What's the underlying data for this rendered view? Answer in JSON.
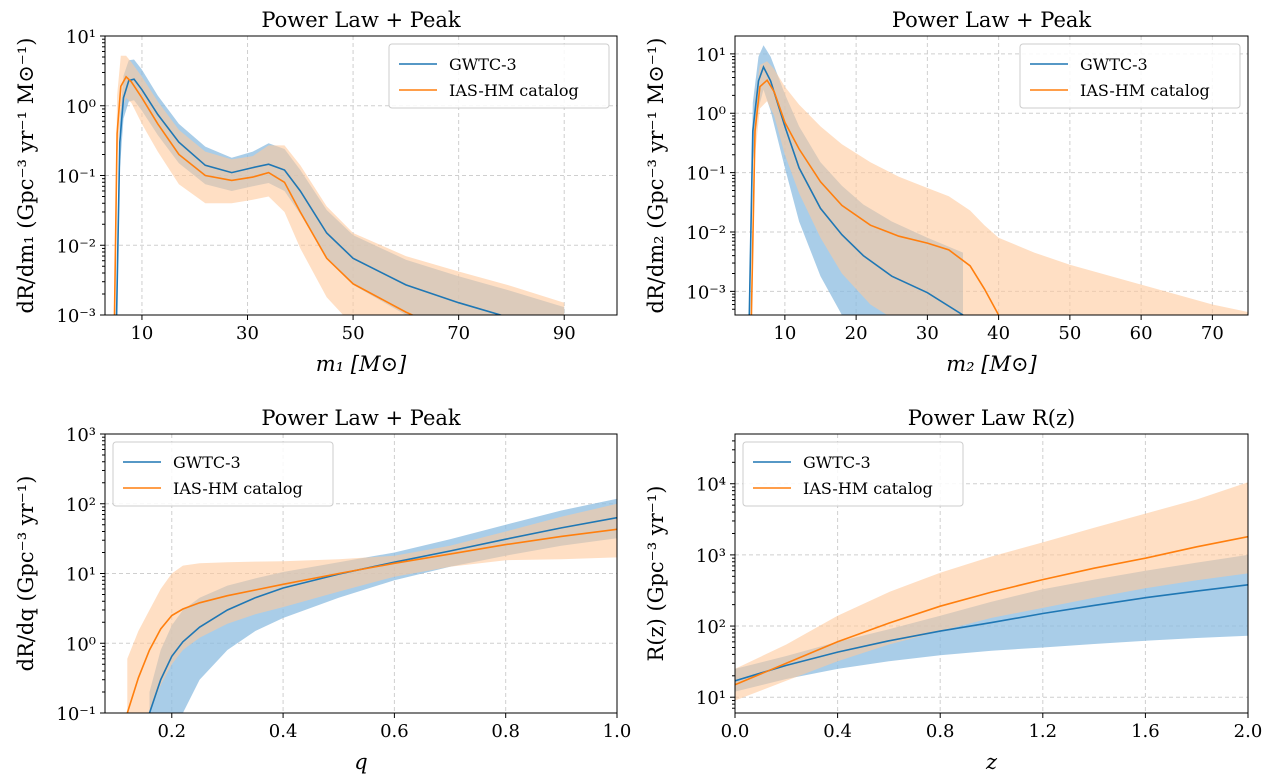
{
  "figure": {
    "colors": {
      "gwtc3": "#1f77b4",
      "gwtc3_band": "#8cbce0",
      "ias": "#ff7f0e",
      "ias_band": "#ffc99c"
    }
  },
  "chart_data": [
    {
      "type": "line",
      "title": "Power Law + Peak",
      "xlabel": "m₁ [M⊙]",
      "ylabel": "dR/dm₁ (Gpc⁻³ yr⁻¹ M⊙⁻¹)",
      "xlim": [
        3,
        100
      ],
      "ylim": [
        0.001,
        10
      ],
      "yscale": "log",
      "xticks": [
        10,
        30,
        50,
        70,
        90
      ],
      "xtick_labels": [
        "10",
        "30",
        "50",
        "70",
        "90"
      ],
      "yticks": [
        0.001,
        0.01,
        0.1,
        1,
        10
      ],
      "ytick_labels": [
        "10⁻³",
        "10⁻²",
        "10⁻¹",
        "10⁰",
        "10¹"
      ],
      "grid": true,
      "legend_position": "top-right",
      "series": [
        {
          "name": "GWTC-3",
          "x": [
            5.2,
            5.8,
            6.5,
            7.5,
            8.5,
            10,
            13,
            17,
            22,
            27,
            31,
            34,
            37,
            40,
            45,
            50,
            60,
            70,
            80,
            90
          ],
          "median": [
            0.001,
            0.3,
            1.3,
            2.3,
            2.4,
            1.7,
            0.75,
            0.3,
            0.14,
            0.11,
            0.13,
            0.145,
            0.12,
            0.06,
            0.015,
            0.0065,
            0.0027,
            0.0015,
            0.0009,
            0.0005
          ],
          "lower": [
            0.0005,
            0.12,
            0.65,
            1.15,
            1.2,
            0.85,
            0.38,
            0.15,
            0.075,
            0.06,
            0.07,
            0.078,
            0.06,
            0.028,
            0.0065,
            0.0027,
            0.001,
            0.0005,
            0.00025,
            0.0001
          ],
          "upper": [
            0.002,
            0.6,
            2.7,
            4.5,
            4.6,
            3.3,
            1.4,
            0.55,
            0.26,
            0.18,
            0.22,
            0.29,
            0.24,
            0.12,
            0.032,
            0.014,
            0.0062,
            0.0036,
            0.0022,
            0.0013
          ]
        },
        {
          "name": "IAS-HM catalog",
          "x": [
            4.8,
            5.3,
            6,
            7,
            8,
            10,
            13,
            17,
            22,
            27,
            31,
            34,
            37,
            40,
            45,
            50,
            60,
            70,
            80,
            90
          ],
          "median": [
            0.001,
            0.4,
            1.9,
            2.6,
            2.2,
            1.3,
            0.55,
            0.2,
            0.1,
            0.085,
            0.095,
            0.11,
            0.08,
            0.03,
            0.0065,
            0.0028,
            0.0011,
            0.0005,
            0.0003,
            0.00018
          ],
          "lower": [
            0.0005,
            0.17,
            0.8,
            1.3,
            1.1,
            0.55,
            0.22,
            0.075,
            0.04,
            0.04,
            0.045,
            0.05,
            0.03,
            0.009,
            0.0018,
            0.0007,
            0.0002,
            0.0001,
            5e-05,
            3e-05
          ],
          "upper": [
            0.003,
            1.4,
            5.2,
            5.2,
            4.2,
            2.6,
            1.15,
            0.45,
            0.22,
            0.17,
            0.19,
            0.27,
            0.27,
            0.14,
            0.036,
            0.015,
            0.007,
            0.0042,
            0.0026,
            0.0015
          ]
        }
      ]
    },
    {
      "type": "line",
      "title": "Power Law + Peak",
      "xlabel": "m₂ [M⊙]",
      "ylabel": "dR/dm₂ (Gpc⁻³ yr⁻¹ M⊙⁻¹)",
      "xlim": [
        3,
        75
      ],
      "ylim": [
        0.0004,
        20
      ],
      "yscale": "log",
      "xticks": [
        10,
        20,
        30,
        40,
        50,
        60,
        70
      ],
      "xtick_labels": [
        "10",
        "20",
        "30",
        "40",
        "50",
        "60",
        "70"
      ],
      "yticks": [
        0.001,
        0.01,
        0.1,
        1,
        10
      ],
      "ytick_labels": [
        "10⁻³",
        "10⁻²",
        "10⁻¹",
        "10⁰",
        "10¹"
      ],
      "grid": true,
      "legend_position": "top-right",
      "series": [
        {
          "name": "GWTC-3",
          "x": [
            5.0,
            5.5,
            6.3,
            7,
            8,
            10,
            12,
            15,
            18,
            21,
            25,
            30,
            35
          ],
          "median": [
            0.0004,
            0.5,
            3.5,
            6,
            3.5,
            0.6,
            0.12,
            0.025,
            0.009,
            0.004,
            0.0018,
            0.00095,
            0.0004
          ],
          "lower": [
            0.0002,
            0.15,
            1.2,
            2.5,
            1.1,
            0.12,
            0.015,
            0.0018,
            0.0004,
            0.00015,
            5e-05,
            2e-05,
            1e-05
          ],
          "upper": [
            0.001,
            1.5,
            9,
            14,
            9,
            2.1,
            0.6,
            0.15,
            0.06,
            0.029,
            0.015,
            0.008,
            0.0045
          ]
        },
        {
          "name": "IAS-HM catalog",
          "x": [
            5.3,
            5.8,
            6.5,
            7.5,
            8.5,
            10,
            12,
            15,
            18,
            22,
            26,
            30,
            33,
            36,
            38,
            40,
            45,
            50,
            60,
            70,
            75
          ],
          "median": [
            0.0004,
            0.5,
            2.8,
            3.6,
            2.3,
            0.7,
            0.25,
            0.07,
            0.028,
            0.013,
            0.0085,
            0.0065,
            0.005,
            0.0027,
            0.0011,
            0.0004,
            0.00012,
            5e-05,
            2e-05,
            1e-05,
            1e-05
          ],
          "lower": [
            0.0002,
            0.2,
            1.2,
            1.6,
            0.9,
            0.2,
            0.045,
            0.008,
            0.002,
            0.0006,
            0.0003,
            0.0002,
            0.00015,
            8e-05,
            4e-05,
            2e-05,
            1e-05,
            1e-05,
            1e-05,
            1e-05,
            1e-05
          ],
          "upper": [
            0.001,
            1.8,
            6.5,
            7.5,
            5.5,
            2.8,
            1.4,
            0.6,
            0.3,
            0.15,
            0.085,
            0.055,
            0.04,
            0.023,
            0.013,
            0.008,
            0.0045,
            0.0028,
            0.0013,
            0.0006,
            0.00045
          ]
        }
      ]
    },
    {
      "type": "line",
      "title": "Power Law + Peak",
      "xlabel": "q",
      "ylabel": "dR/dq (Gpc⁻³ yr⁻¹)",
      "xlim": [
        0.08,
        1.0
      ],
      "ylim": [
        0.1,
        1000
      ],
      "yscale": "log",
      "xticks": [
        0.2,
        0.4,
        0.6,
        0.8,
        1.0
      ],
      "xtick_labels": [
        "0.2",
        "0.4",
        "0.6",
        "0.8",
        "1.0"
      ],
      "yticks": [
        0.1,
        1,
        10,
        100,
        1000
      ],
      "ytick_labels": [
        "10⁻¹",
        "10⁰",
        "10¹",
        "10²",
        "10³"
      ],
      "grid": true,
      "legend_position": "top-left",
      "series": [
        {
          "name": "GWTC-3",
          "x": [
            0.16,
            0.18,
            0.2,
            0.22,
            0.25,
            0.3,
            0.35,
            0.4,
            0.5,
            0.6,
            0.7,
            0.8,
            0.9,
            1.0
          ],
          "median": [
            0.1,
            0.3,
            0.65,
            1.05,
            1.7,
            3.0,
            4.5,
            6.2,
            9.8,
            14.5,
            21,
            31,
            45,
            63
          ],
          "lower": [
            0.05,
            0.05,
            0.05,
            0.1,
            0.3,
            0.8,
            1.5,
            2.3,
            4.5,
            8,
            12.5,
            18,
            25,
            32
          ],
          "upper": [
            0.2,
            0.8,
            1.8,
            3.0,
            4.5,
            6.7,
            8.5,
            10.5,
            14.5,
            20,
            31,
            50,
            80,
            118
          ]
        },
        {
          "name": "IAS-HM catalog",
          "x": [
            0.12,
            0.14,
            0.16,
            0.18,
            0.2,
            0.22,
            0.25,
            0.3,
            0.35,
            0.4,
            0.5,
            0.6,
            0.7,
            0.8,
            0.9,
            1.0
          ],
          "median": [
            0.1,
            0.32,
            0.8,
            1.6,
            2.5,
            3.1,
            3.8,
            4.8,
            5.8,
            7.0,
            10,
            14,
            19,
            26,
            34,
            43
          ],
          "lower": [
            0.05,
            0.05,
            0.1,
            0.25,
            0.5,
            0.8,
            1.2,
            1.9,
            2.6,
            3.3,
            5.5,
            9,
            12.5,
            15.5,
            16,
            17
          ],
          "upper": [
            0.6,
            1.5,
            3,
            6,
            10,
            13,
            14,
            14.5,
            14.8,
            15,
            16,
            18,
            25,
            40,
            65,
            100
          ]
        }
      ]
    },
    {
      "type": "line",
      "title": "Power Law R(z)",
      "xlabel": "z",
      "ylabel": "R(z) (Gpc⁻³ yr⁻¹)",
      "xlim": [
        0,
        2.0
      ],
      "ylim": [
        6,
        50000
      ],
      "yscale": "log",
      "xticks": [
        0,
        0.4,
        0.8,
        1.2,
        1.6,
        2.0
      ],
      "xtick_labels": [
        "0.0",
        "0.4",
        "0.8",
        "1.2",
        "1.6",
        "2.0"
      ],
      "yticks": [
        10,
        100,
        1000,
        10000
      ],
      "ytick_labels": [
        "10¹",
        "10²",
        "10³",
        "10⁴"
      ],
      "grid": true,
      "legend_position": "top-left",
      "series": [
        {
          "name": "GWTC-3",
          "x": [
            0,
            0.2,
            0.4,
            0.6,
            0.8,
            1.0,
            1.2,
            1.4,
            1.6,
            1.8,
            2.0
          ],
          "median": [
            17,
            28,
            43,
            62,
            85,
            112,
            150,
            195,
            250,
            310,
            380
          ],
          "lower": [
            12,
            18,
            25,
            32,
            39,
            45,
            50,
            56,
            62,
            68,
            73
          ],
          "upper": [
            25,
            38,
            60,
            90,
            140,
            220,
            330,
            450,
            600,
            780,
            1000
          ]
        },
        {
          "name": "IAS-HM catalog",
          "x": [
            0,
            0.2,
            0.4,
            0.6,
            0.8,
            1.0,
            1.2,
            1.4,
            1.6,
            1.8,
            2.0
          ],
          "median": [
            15,
            30,
            60,
            110,
            190,
            300,
            450,
            650,
            900,
            1300,
            1800
          ],
          "lower": [
            9,
            17,
            32,
            55,
            85,
            130,
            180,
            250,
            340,
            440,
            550
          ],
          "upper": [
            25,
            55,
            140,
            300,
            560,
            950,
            1500,
            2400,
            3800,
            6000,
            10500
          ]
        }
      ]
    }
  ]
}
